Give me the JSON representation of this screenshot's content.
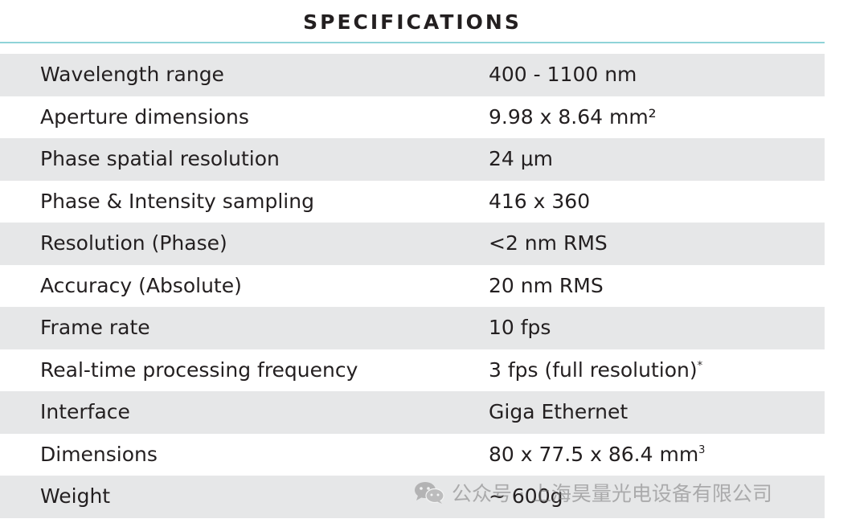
{
  "header": {
    "title": "SPECIFICATIONS"
  },
  "specs": [
    {
      "label": "Wavelength range",
      "value": "400 - 1100 nm",
      "sup": ""
    },
    {
      "label": "Aperture dimensions",
      "value": "9.98 x 8.64 mm²",
      "sup": ""
    },
    {
      "label": "Phase spatial resolution",
      "value": "24 μm",
      "sup": ""
    },
    {
      "label": "Phase & Intensity sampling",
      "value": "416 x 360",
      "sup": ""
    },
    {
      "label": "Resolution (Phase)",
      "value": "<2 nm RMS",
      "sup": ""
    },
    {
      "label": "Accuracy (Absolute)",
      "value": "20 nm RMS",
      "sup": ""
    },
    {
      "label": "Frame rate",
      "value": "10 fps",
      "sup": ""
    },
    {
      "label": "Real-time processing frequency",
      "value": "3 fps (full resolution)",
      "sup": "*"
    },
    {
      "label": "Interface",
      "value": "Giga Ethernet",
      "sup": ""
    },
    {
      "label": "Dimensions",
      "value": "80 x 77.5 x 86.4 mm",
      "sup": "3"
    },
    {
      "label": "Weight",
      "value": "~ 600g",
      "sup": ""
    }
  ],
  "watermark": {
    "icon": "wechat-icon",
    "text": "公众号 · 上海昊量光电设备有限公司"
  },
  "colors": {
    "shaded_row": "#e6e7e8",
    "header_rule": "#8fd3d8",
    "text": "#231f20"
  }
}
